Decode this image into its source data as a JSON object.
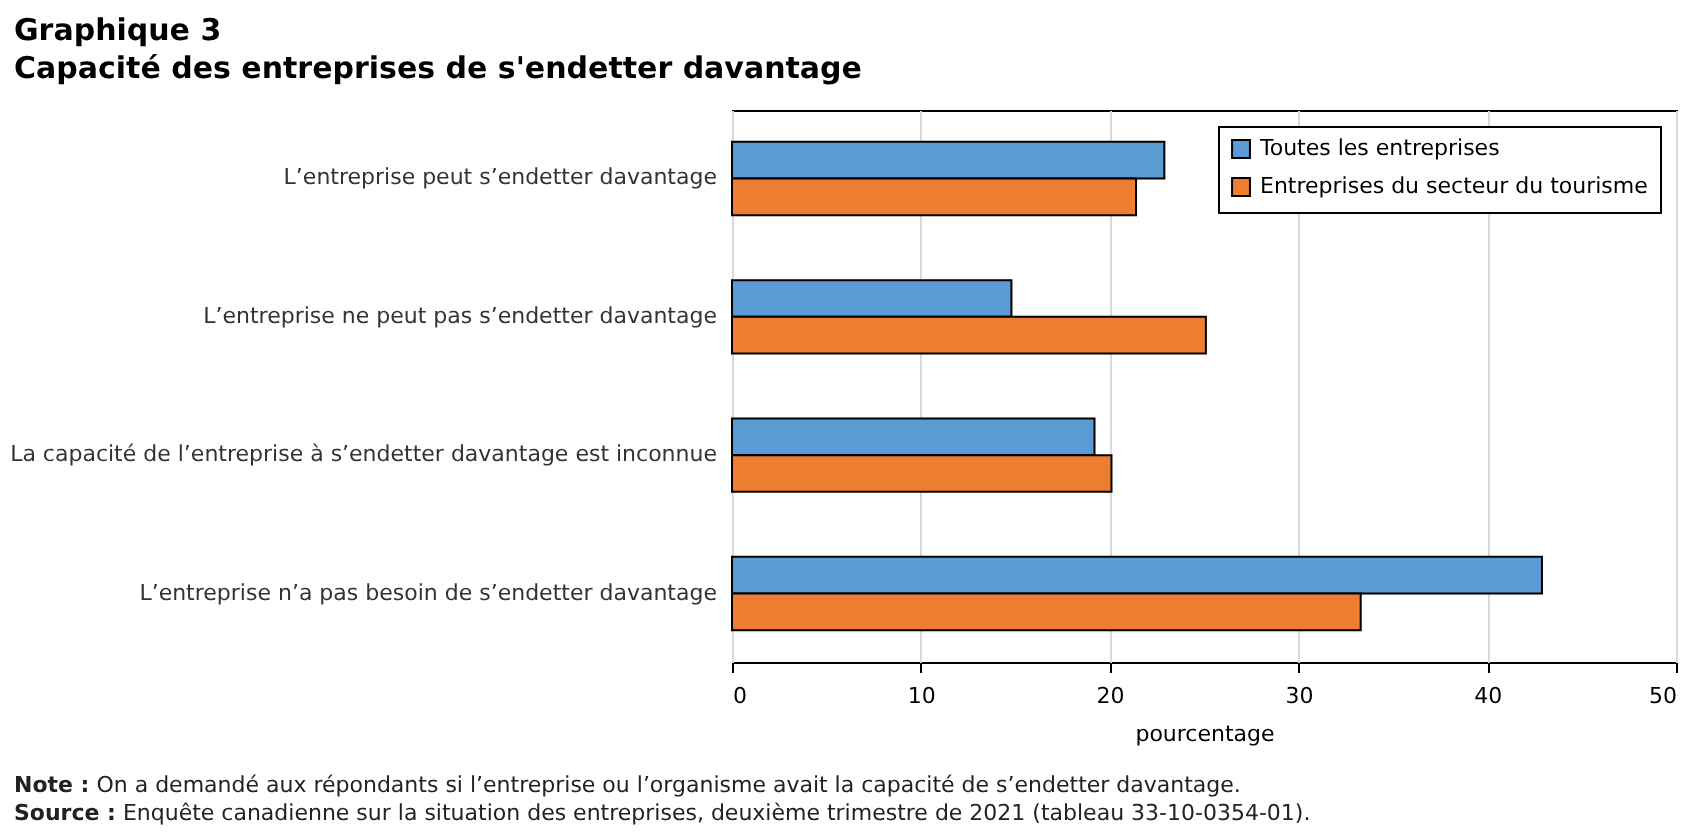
{
  "chart_data": {
    "type": "bar",
    "orientation": "horizontal",
    "title": "Graphique 3",
    "subtitle": "Capacité des entreprises de s'endetter davantage",
    "categories": [
      "L’entreprise peut s’endetter davantage",
      "L’entreprise ne peut pas s’endetter davantage",
      "La capacité de l’entreprise à s’endetter davantage est inconnue",
      "L’entreprise n’a pas besoin de s’endetter davantage"
    ],
    "series": [
      {
        "name": "Toutes les entreprises",
        "color": "#5b9bd5",
        "values": [
          22.9,
          14.8,
          19.2,
          42.9
        ]
      },
      {
        "name": "Entreprises du secteur du tourisme",
        "color": "#ed7d31",
        "values": [
          21.4,
          25.1,
          20.1,
          33.3
        ]
      }
    ],
    "xlabel": "pourcentage",
    "xlim": [
      0,
      50
    ],
    "xticks": [
      0,
      10,
      20,
      30,
      40,
      50
    ],
    "grid": "x",
    "legend": "top right",
    "annotations": [
      "Note : On a demandé aux répondants si l’entreprise ou l’organisme avait la capacité de s’endetter davantage.",
      "Source : Enquête canadienne sur la situation des entreprises, deuxième trimestre de 2021 (tableau 33-10-0354-01)."
    ]
  }
}
